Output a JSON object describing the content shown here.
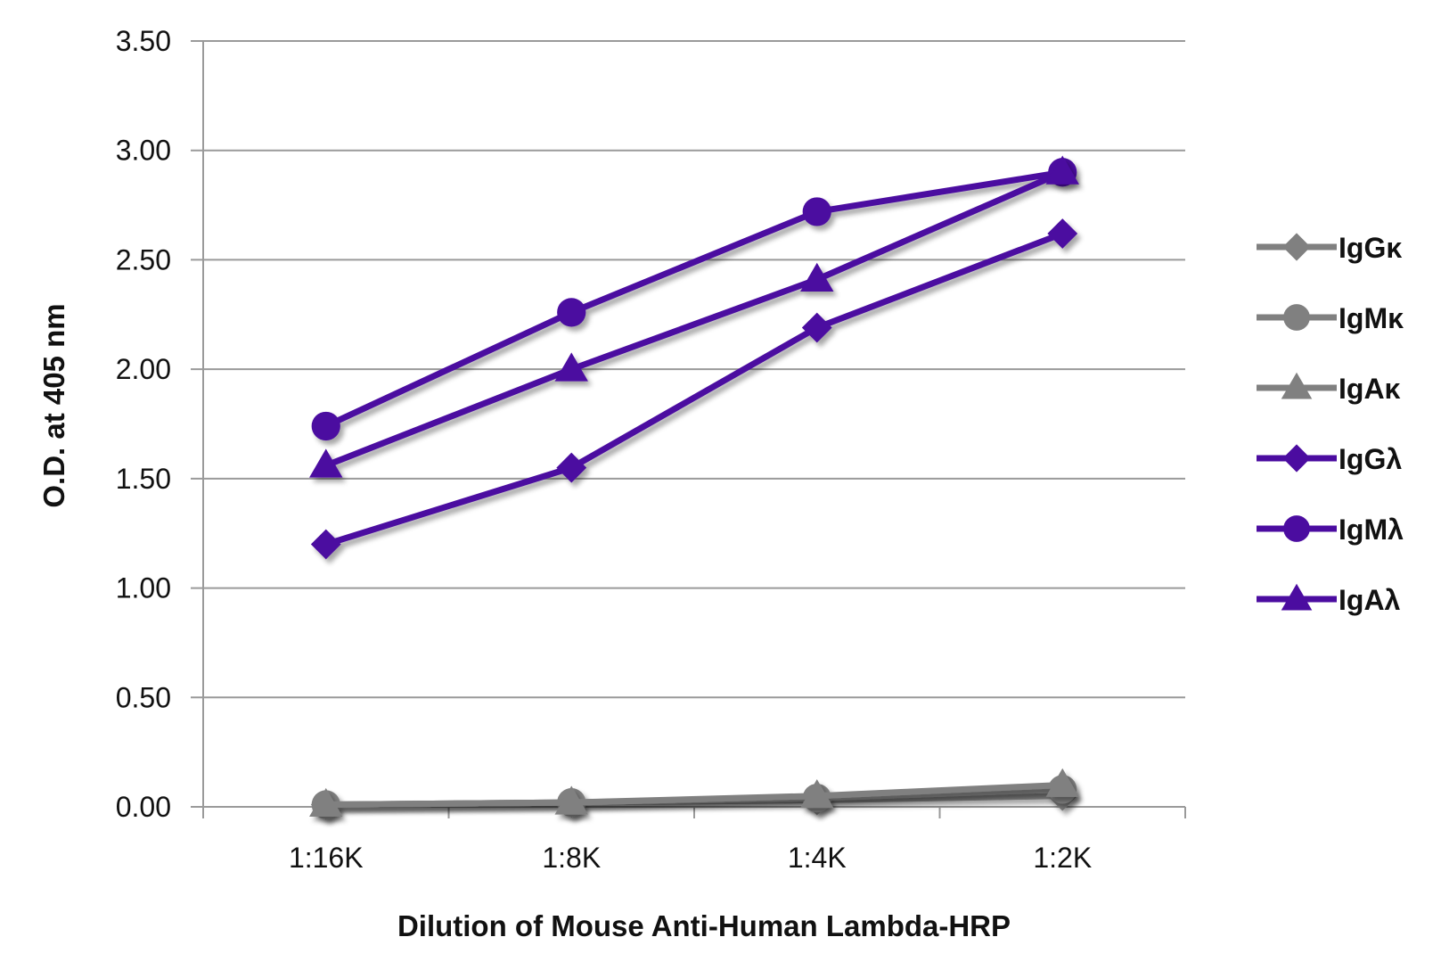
{
  "chart_data": {
    "type": "line",
    "title": "",
    "xlabel": "Dilution of Mouse Anti-Human Lambda-HRP",
    "ylabel": "O.D. at 405 nm",
    "categories": [
      "1:16K",
      "1:8K",
      "1:4K",
      "1:2K"
    ],
    "ylim": [
      0,
      3.5
    ],
    "yticks": [
      "0.00",
      "0.50",
      "1.00",
      "1.50",
      "2.00",
      "2.50",
      "3.00",
      "3.50"
    ],
    "grid": true,
    "legend_position": "right",
    "series": [
      {
        "name": "IgGκ",
        "values": [
          0.01,
          0.02,
          0.03,
          0.05
        ],
        "color": "#808080",
        "marker": "diamond"
      },
      {
        "name": "IgMκ",
        "values": [
          0.01,
          0.02,
          0.04,
          0.08
        ],
        "color": "#808080",
        "marker": "circle"
      },
      {
        "name": "IgAκ",
        "values": [
          0.01,
          0.02,
          0.05,
          0.1
        ],
        "color": "#808080",
        "marker": "triangle"
      },
      {
        "name": "IgGλ",
        "values": [
          1.2,
          1.55,
          2.19,
          2.62
        ],
        "color": "#4b0ca0",
        "marker": "diamond"
      },
      {
        "name": "IgMλ",
        "values": [
          1.74,
          2.26,
          2.72,
          2.9
        ],
        "color": "#4b0ca0",
        "marker": "circle"
      },
      {
        "name": "IgAλ",
        "values": [
          1.56,
          2.0,
          2.41,
          2.9
        ],
        "color": "#4b0ca0",
        "marker": "triangle"
      }
    ]
  }
}
